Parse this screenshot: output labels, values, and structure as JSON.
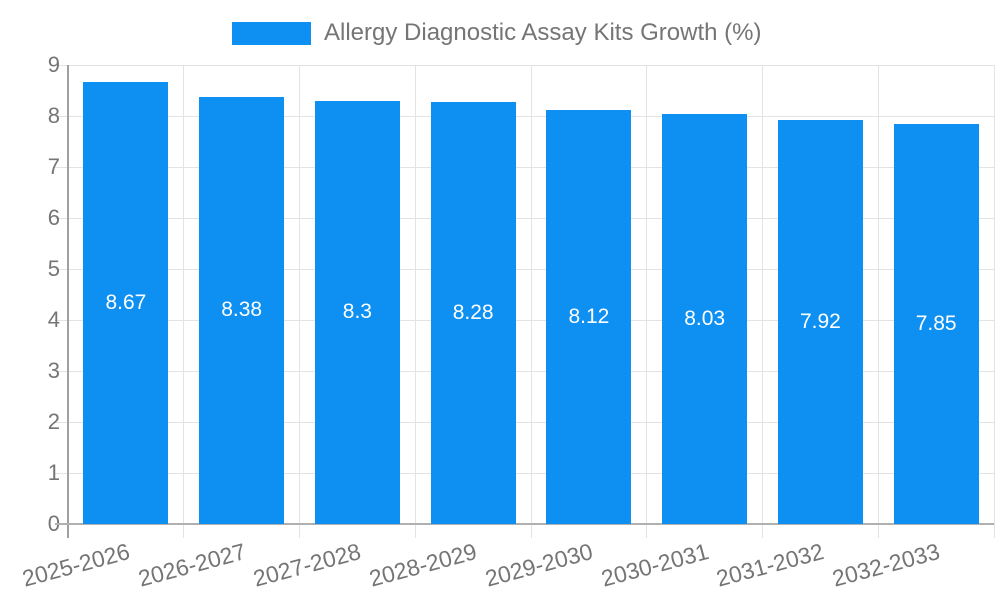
{
  "legend": {
    "label": "Allergy Diagnostic Assay Kits Growth (%)"
  },
  "chart_data": {
    "type": "bar",
    "title": "Allergy Diagnostic Assay Kits Growth (%)",
    "legend_position": "top",
    "categories": [
      "2025-2026",
      "2026-2027",
      "2027-2028",
      "2028-2029",
      "2029-2030",
      "2030-2031",
      "2031-2032",
      "2032-2033"
    ],
    "series": [
      {
        "name": "Allergy Diagnostic Assay Kits Growth (%)",
        "values": [
          8.67,
          8.38,
          8.3,
          8.28,
          8.12,
          8.03,
          7.92,
          7.85
        ]
      }
    ],
    "value_labels": [
      "8.67",
      "8.38",
      "8.3",
      "8.28",
      "8.12",
      "8.03",
      "7.92",
      "7.85"
    ],
    "xlabel": "",
    "ylabel": "",
    "ylim": [
      0,
      9
    ],
    "yticks": [
      0,
      1,
      2,
      3,
      4,
      5,
      6,
      7,
      8,
      9
    ],
    "grid": true,
    "x_label_rotation_deg": -15,
    "colors": {
      "bar": "#0e90f2",
      "bar_label": "#ffffff",
      "axis_text": "#757575",
      "y_axis_line": "#a0a0a0",
      "x_axis_line": "#b0b0b0",
      "gridline": "#e3e3e3",
      "background": "#ffffff"
    }
  }
}
